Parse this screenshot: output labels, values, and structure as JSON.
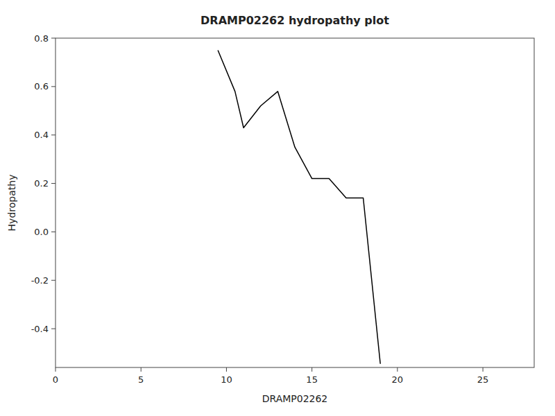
{
  "chart_data": {
    "type": "line",
    "title": "DRAMP02262 hydropathy plot",
    "xlabel": "DRAMP02262",
    "ylabel": "Hydropathy",
    "x": [
      9.5,
      10.5,
      11.0,
      12.0,
      13.0,
      14.0,
      15.0,
      16.0,
      17.0,
      18.0,
      19.0
    ],
    "values": [
      0.75,
      0.58,
      0.43,
      0.52,
      0.58,
      0.35,
      0.22,
      0.22,
      0.14,
      0.14,
      -0.545
    ],
    "color": "#000000",
    "xlim": [
      0,
      28
    ],
    "ylim": [
      -0.56,
      0.8
    ],
    "xticks": [
      0,
      5,
      10,
      15,
      20,
      25
    ],
    "yticks": [
      -0.4,
      -0.2,
      {
        "value": 0.0,
        "label": "0.0"
      },
      0.2,
      0.4,
      0.6,
      0.8
    ]
  }
}
